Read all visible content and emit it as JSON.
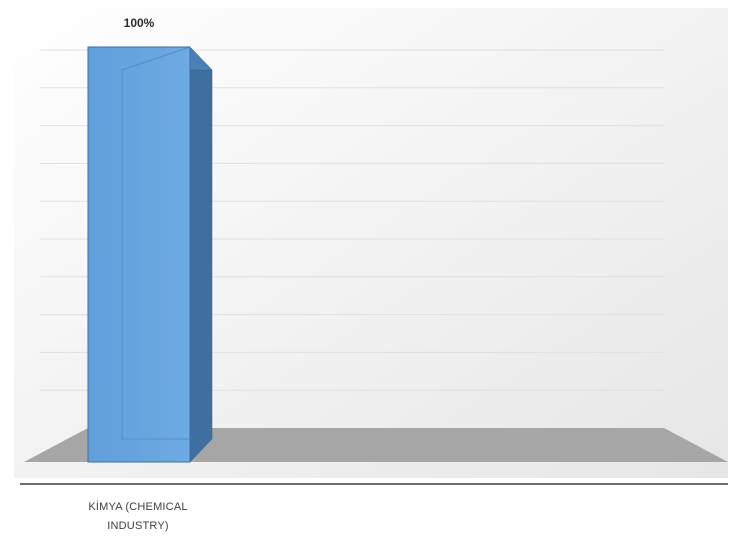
{
  "chart_data": {
    "type": "bar",
    "style": "3d-column",
    "categories": [
      "KİMYA (CHEMICAL INDUSTRY)"
    ],
    "category_label_lines": [
      "KİMYA (CHEMICAL",
      "INDUSTRY)"
    ],
    "values": [
      100
    ],
    "data_labels": [
      "100%"
    ],
    "ylim": [
      0,
      100
    ],
    "gridlines": true,
    "legend": "none",
    "bar_color": "#5b9bd5",
    "floor_color": "#a6a6a6"
  }
}
